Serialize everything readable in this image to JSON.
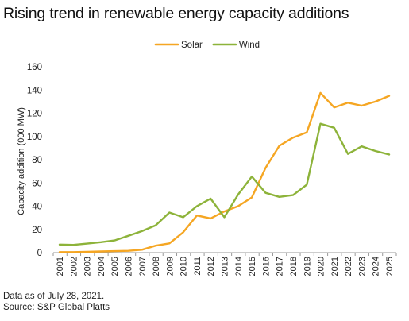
{
  "title": "Rising trend in renewable energy capacity additions",
  "footnotes": {
    "line1": "Data as of July 28, 2021.",
    "line2": "Source: S&P Global Platts"
  },
  "chart_data": {
    "type": "line",
    "title": "Rising trend in renewable energy capacity additions",
    "xlabel": "",
    "ylabel": "Capacity addition (000 MW)",
    "ylim": [
      0,
      160
    ],
    "yticks": [
      0,
      20,
      40,
      60,
      80,
      100,
      120,
      140,
      160
    ],
    "grid": false,
    "legend_position": "top-center",
    "categories": [
      "2001",
      "2002",
      "2003",
      "2004",
      "2005",
      "2006",
      "2007",
      "2008",
      "2009",
      "2010",
      "2011",
      "2012",
      "2013",
      "2014",
      "2015",
      "2016",
      "2017",
      "2018",
      "2019",
      "2020",
      "2021",
      "2022",
      "2023",
      "2024",
      "2025"
    ],
    "series": [
      {
        "name": "Solar",
        "color": "#f5a623",
        "values": [
          0.5,
          0.5,
          0.7,
          1.0,
          1.3,
          1.6,
          2.5,
          6.0,
          8.0,
          17.5,
          32.0,
          29.5,
          35.5,
          40.0,
          47.5,
          73.0,
          92.0,
          99.0,
          103.5,
          137.5,
          125.0,
          129.0,
          126.5,
          130.0,
          135.0
        ]
      },
      {
        "name": "Wind",
        "color": "#8db33a",
        "values": [
          7.0,
          6.7,
          7.8,
          9.0,
          10.5,
          14.5,
          18.5,
          23.5,
          34.5,
          30.5,
          40.0,
          46.5,
          30.5,
          50.0,
          65.5,
          51.5,
          48.0,
          49.5,
          58.5,
          111.0,
          107.5,
          85.0,
          91.5,
          87.5,
          84.5
        ]
      }
    ]
  }
}
